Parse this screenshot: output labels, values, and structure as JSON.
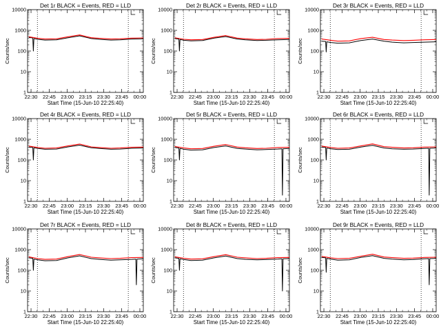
{
  "chart_data": [
    {
      "type": "line",
      "title": "Det 1r BLACK = Events, RED = LLD",
      "ylabel": "Counts/sec",
      "xlabel": "Start Time (15-Jun-10 22:25:40)",
      "x_ticks": [
        "22:30",
        "22:45",
        "23:00",
        "23:15",
        "23:30",
        "23:45",
        "00:00"
      ],
      "y_ticks": [
        "1",
        "10",
        "100",
        "1000",
        "10000"
      ],
      "x_min": 0,
      "x_max": 100,
      "ylim": [
        1,
        10000
      ],
      "y_scale": "log",
      "vlines": [
        8.5,
        87
      ],
      "dropout_x": [
        5
      ],
      "dropout_y": 100,
      "series": [
        {
          "color": "#000000",
          "x": [
            1,
            4.5,
            5,
            5.5,
            9,
            15,
            25,
            35,
            45,
            55,
            62,
            72,
            80,
            90,
            100
          ],
          "y": [
            450,
            430,
            100,
            400,
            370,
            340,
            350,
            440,
            540,
            400,
            370,
            340,
            350,
            380,
            390
          ]
        },
        {
          "color": "#ff0000",
          "x": [
            1,
            9,
            15,
            25,
            35,
            45,
            55,
            62,
            72,
            80,
            90,
            100
          ],
          "y": [
            490,
            410,
            380,
            390,
            490,
            600,
            440,
            410,
            380,
            390,
            420,
            430
          ]
        }
      ]
    },
    {
      "type": "line",
      "title": "Det 2r BLACK = Events, RED = LLD",
      "ylabel": "Counts/sec",
      "xlabel": "Start Time (15-Jun-10 22:25:40)",
      "x_ticks": [
        "22:30",
        "22:45",
        "23:00",
        "23:15",
        "23:30",
        "23:45",
        "00:00"
      ],
      "y_ticks": [
        "1",
        "10",
        "100",
        "1000",
        "10000"
      ],
      "x_min": 0,
      "x_max": 100,
      "ylim": [
        1,
        10000
      ],
      "y_scale": "log",
      "vlines": [
        8.5,
        87
      ],
      "dropout_x": [
        5
      ],
      "dropout_y": 100,
      "series": [
        {
          "color": "#000000",
          "x": [
            1,
            4.5,
            5,
            5.5,
            9,
            15,
            25,
            35,
            45,
            55,
            62,
            72,
            80,
            90,
            100
          ],
          "y": [
            400,
            380,
            100,
            360,
            330,
            310,
            320,
            420,
            500,
            380,
            350,
            320,
            330,
            350,
            360
          ]
        },
        {
          "color": "#ff0000",
          "x": [
            1,
            9,
            15,
            25,
            35,
            45,
            55,
            62,
            72,
            80,
            90,
            100
          ],
          "y": [
            440,
            370,
            350,
            360,
            460,
            560,
            420,
            390,
            360,
            370,
            400,
            410
          ]
        }
      ]
    },
    {
      "type": "line",
      "title": "Det 3r BLACK = Events, RED = LLD",
      "ylabel": "Counts/sec",
      "xlabel": "Start Time (15-Jun-10 22:25:40)",
      "x_ticks": [
        "22:30",
        "22:45",
        "23:00",
        "23:15",
        "23:30",
        "23:45",
        "00:00"
      ],
      "y_ticks": [
        "1",
        "10",
        "100",
        "1000",
        "10000"
      ],
      "x_min": 0,
      "x_max": 100,
      "ylim": [
        1,
        10000
      ],
      "y_scale": "log",
      "vlines": [
        8.5,
        87
      ],
      "dropout_x": [
        5
      ],
      "dropout_y": 90,
      "series": [
        {
          "color": "#000000",
          "x": [
            1,
            4.5,
            5,
            5.5,
            9,
            15,
            25,
            35,
            45,
            55,
            62,
            72,
            80,
            90,
            100
          ],
          "y": [
            300,
            290,
            90,
            280,
            260,
            240,
            250,
            320,
            380,
            300,
            270,
            250,
            260,
            270,
            280
          ]
        },
        {
          "color": "#ff0000",
          "x": [
            1,
            9,
            15,
            25,
            35,
            45,
            55,
            62,
            72,
            80,
            90,
            100
          ],
          "y": [
            380,
            330,
            300,
            310,
            400,
            460,
            360,
            340,
            320,
            330,
            350,
            360
          ]
        }
      ]
    },
    {
      "type": "line",
      "title": "Det 4r BLACK = Events, RED = LLD",
      "ylabel": "Counts/sec",
      "xlabel": "Start Time (15-Jun-10 22:25:40)",
      "x_ticks": [
        "22:30",
        "22:45",
        "23:00",
        "23:15",
        "23:30",
        "23:45",
        "00:00"
      ],
      "y_ticks": [
        "1",
        "10",
        "100",
        "1000",
        "10000"
      ],
      "x_min": 0,
      "x_max": 100,
      "ylim": [
        1,
        10000
      ],
      "y_scale": "log",
      "vlines": [
        8.5,
        87
      ],
      "dropout_x": [
        5
      ],
      "dropout_y": 100,
      "series": [
        {
          "color": "#000000",
          "x": [
            1,
            4.5,
            5,
            5.5,
            9,
            15,
            25,
            35,
            45,
            55,
            62,
            72,
            80,
            90,
            100
          ],
          "y": [
            420,
            400,
            100,
            390,
            360,
            330,
            340,
            430,
            520,
            390,
            360,
            330,
            340,
            370,
            380
          ]
        },
        {
          "color": "#ff0000",
          "x": [
            1,
            9,
            15,
            25,
            35,
            45,
            55,
            62,
            72,
            80,
            90,
            100
          ],
          "y": [
            470,
            400,
            370,
            380,
            480,
            590,
            430,
            400,
            370,
            380,
            410,
            420
          ]
        }
      ]
    },
    {
      "type": "line",
      "title": "Det 5r BLACK = Events, RED = LLD",
      "ylabel": "Counts/sec",
      "xlabel": "Start Time (15-Jun-10 22:25:40)",
      "x_ticks": [
        "22:30",
        "22:45",
        "23:00",
        "23:15",
        "23:30",
        "23:45",
        "00:00"
      ],
      "y_ticks": [
        "1",
        "10",
        "100",
        "1000",
        "10000"
      ],
      "x_min": 0,
      "x_max": 100,
      "ylim": [
        1,
        10000
      ],
      "y_scale": "log",
      "vlines": [
        8.5,
        87
      ],
      "dropout_x": [
        5,
        94
      ],
      "dropout_y": 2,
      "series": [
        {
          "color": "#000000",
          "x": [
            1,
            4.5,
            5,
            5.5,
            9,
            15,
            25,
            35,
            45,
            55,
            62,
            72,
            80,
            90,
            93.5,
            94,
            94.5,
            100
          ],
          "y": [
            400,
            380,
            100,
            360,
            330,
            300,
            310,
            400,
            480,
            360,
            340,
            310,
            320,
            340,
            350,
            2,
            350,
            360
          ]
        },
        {
          "color": "#ff0000",
          "x": [
            1,
            9,
            15,
            25,
            35,
            45,
            55,
            62,
            72,
            80,
            90,
            100
          ],
          "y": [
            450,
            380,
            350,
            360,
            460,
            560,
            420,
            390,
            360,
            370,
            400,
            410
          ]
        }
      ]
    },
    {
      "type": "line",
      "title": "Det 6r BLACK = Events, RED = LLD",
      "ylabel": "Counts/sec",
      "xlabel": "Start Time (15-Jun-10 22:25:40)",
      "x_ticks": [
        "22:30",
        "22:45",
        "23:00",
        "23:15",
        "23:30",
        "23:45",
        "00:00"
      ],
      "y_ticks": [
        "1",
        "10",
        "100",
        "1000",
        "10000"
      ],
      "x_min": 0,
      "x_max": 100,
      "ylim": [
        1,
        10000
      ],
      "y_scale": "log",
      "vlines": [
        8.5,
        87
      ],
      "dropout_x": [
        5,
        94
      ],
      "dropout_y": 2,
      "series": [
        {
          "color": "#000000",
          "x": [
            1,
            4.5,
            5,
            5.5,
            9,
            15,
            25,
            35,
            45,
            55,
            62,
            72,
            80,
            90,
            93.5,
            94,
            94.5,
            100
          ],
          "y": [
            420,
            400,
            100,
            380,
            350,
            320,
            330,
            420,
            510,
            380,
            350,
            330,
            340,
            360,
            370,
            2,
            370,
            380
          ]
        },
        {
          "color": "#ff0000",
          "x": [
            1,
            9,
            15,
            25,
            35,
            45,
            55,
            62,
            72,
            80,
            90,
            100
          ],
          "y": [
            470,
            400,
            370,
            380,
            480,
            600,
            440,
            410,
            380,
            390,
            420,
            430
          ]
        }
      ]
    },
    {
      "type": "line",
      "title": "Det 7r BLACK = Events, RED = LLD",
      "ylabel": "Counts/sec",
      "xlabel": "Start Time (15-Jun-10 22:25:40)",
      "x_ticks": [
        "22:30",
        "22:45",
        "23:00",
        "23:15",
        "23:30",
        "23:45",
        "00:00"
      ],
      "y_ticks": [
        "1",
        "10",
        "100",
        "1000",
        "10000"
      ],
      "x_min": 0,
      "x_max": 100,
      "ylim": [
        1,
        10000
      ],
      "y_scale": "log",
      "vlines": [
        8.5,
        87
      ],
      "dropout_x": [
        5,
        94
      ],
      "dropout_y": 20,
      "series": [
        {
          "color": "#000000",
          "x": [
            1,
            4.5,
            5,
            5.5,
            9,
            15,
            25,
            35,
            45,
            55,
            62,
            72,
            80,
            90,
            93.5,
            94,
            94.5,
            100
          ],
          "y": [
            400,
            380,
            100,
            350,
            320,
            290,
            300,
            400,
            500,
            370,
            340,
            310,
            320,
            340,
            350,
            20,
            350,
            360
          ]
        },
        {
          "color": "#ff0000",
          "x": [
            1,
            9,
            15,
            25,
            35,
            45,
            55,
            62,
            72,
            80,
            90,
            100
          ],
          "y": [
            450,
            370,
            340,
            350,
            460,
            580,
            430,
            400,
            370,
            380,
            410,
            420
          ]
        }
      ]
    },
    {
      "type": "line",
      "title": "Det 8r BLACK = Events, RED = LLD",
      "ylabel": "Counts/sec",
      "xlabel": "Start Time (15-Jun-10 22:25:40)",
      "x_ticks": [
        "22:30",
        "22:45",
        "23:00",
        "23:15",
        "23:30",
        "23:45",
        "00:00"
      ],
      "y_ticks": [
        "1",
        "10",
        "100",
        "1000",
        "10000"
      ],
      "x_min": 0,
      "x_max": 100,
      "ylim": [
        1,
        10000
      ],
      "y_scale": "log",
      "vlines": [
        8.5,
        87
      ],
      "dropout_x": [
        5,
        94
      ],
      "dropout_y": 10,
      "series": [
        {
          "color": "#000000",
          "x": [
            1,
            4.5,
            5,
            5.5,
            9,
            15,
            25,
            35,
            45,
            55,
            62,
            72,
            80,
            90,
            93.5,
            94,
            94.5,
            100
          ],
          "y": [
            400,
            380,
            100,
            360,
            330,
            300,
            310,
            400,
            490,
            370,
            340,
            320,
            330,
            350,
            360,
            10,
            360,
            370
          ]
        },
        {
          "color": "#ff0000",
          "x": [
            1,
            9,
            15,
            25,
            35,
            45,
            55,
            62,
            72,
            80,
            90,
            100
          ],
          "y": [
            450,
            380,
            350,
            360,
            460,
            570,
            430,
            400,
            370,
            380,
            410,
            420
          ]
        }
      ]
    },
    {
      "type": "line",
      "title": "Det 9r BLACK = Events, RED = LLD",
      "ylabel": "Counts/sec",
      "xlabel": "Start Time (15-Jun-10 22:25:40)",
      "x_ticks": [
        "22:30",
        "22:45",
        "23:00",
        "23:15",
        "23:30",
        "23:45",
        "00:00"
      ],
      "y_ticks": [
        "1",
        "10",
        "100",
        "1000",
        "10000"
      ],
      "x_min": 0,
      "x_max": 100,
      "ylim": [
        1,
        10000
      ],
      "y_scale": "log",
      "vlines": [
        8.5,
        87
      ],
      "dropout_x": [
        5,
        94
      ],
      "dropout_y": 20,
      "series": [
        {
          "color": "#000000",
          "x": [
            1,
            4.5,
            5,
            5.5,
            9,
            15,
            25,
            35,
            45,
            55,
            62,
            72,
            80,
            90,
            93.5,
            94,
            94.5,
            100
          ],
          "y": [
            420,
            400,
            80,
            380,
            350,
            310,
            320,
            420,
            510,
            380,
            350,
            320,
            330,
            360,
            370,
            20,
            370,
            380
          ]
        },
        {
          "color": "#ff0000",
          "x": [
            1,
            9,
            15,
            25,
            35,
            45,
            55,
            62,
            72,
            80,
            90,
            100
          ],
          "y": [
            470,
            400,
            370,
            380,
            480,
            600,
            440,
            410,
            380,
            390,
            420,
            430
          ]
        }
      ]
    }
  ]
}
